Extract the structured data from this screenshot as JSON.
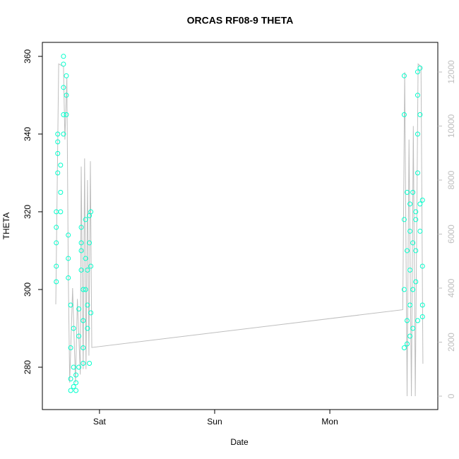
{
  "chart_data": {
    "type": "scatter",
    "title": "ORCAS RF08-9 THETA",
    "x_label": "Date",
    "y_label": "THETA",
    "xlim": [
      -11.9,
      70.5
    ],
    "xticks": [
      {
        "value": 0,
        "label": "Sat"
      },
      {
        "value": 24,
        "label": "Sun"
      },
      {
        "value": 48,
        "label": "Mon"
      }
    ],
    "ylim": [
      269.1,
      363.6
    ],
    "yticks": [
      280,
      300,
      320,
      340,
      360
    ],
    "y2lim": [
      -497,
      13098
    ],
    "y2ticks": [
      0,
      2000,
      4000,
      6000,
      8000,
      10000,
      12000
    ],
    "series": [
      {
        "color": "#00FFCC",
        "x": [
          -9.0,
          -9.0,
          -9.0,
          -9.0,
          -9.0,
          -8.7,
          -8.7,
          -8.7,
          -8.7,
          -8.1,
          -8.1,
          -8.1,
          -7.5,
          -7.5,
          -7.5,
          -7.5,
          -7.5,
          -6.9,
          -6.9,
          -6.9,
          -6.5,
          -6.5,
          -6.5,
          -6.0,
          -6.0,
          -6.0,
          -6.0,
          -5.4,
          -5.4,
          -5.4,
          -4.9,
          -4.9,
          -4.9,
          -4.3,
          -4.3,
          -4.3,
          -3.8,
          -3.8,
          -3.8,
          -3.8,
          -3.4,
          -3.4,
          -3.4,
          -3.4,
          -2.9,
          -2.9,
          -2.9,
          -2.5,
          -2.5,
          -2.5,
          -2.1,
          -2.1,
          -2.1,
          -1.8,
          -1.8,
          -1.8,
          63.5,
          63.5,
          63.5,
          63.5,
          63.5,
          64.1,
          64.1,
          64.1,
          64.1,
          64.7,
          64.7,
          64.7,
          64.7,
          64.7,
          65.3,
          65.3,
          65.3,
          65.3,
          65.9,
          65.9,
          65.9,
          65.9,
          66.3,
          66.3,
          66.3,
          66.3,
          66.3,
          66.8,
          66.8,
          66.8,
          66.8,
          67.3,
          67.3,
          67.3,
          67.3
        ],
        "values": [
          302,
          306,
          312,
          316,
          320,
          330,
          335,
          338,
          340,
          332,
          320,
          325,
          340,
          345,
          352,
          358,
          360,
          355,
          350,
          345,
          314,
          308,
          303,
          296,
          285,
          277,
          274,
          290,
          280,
          275,
          274,
          276,
          278,
          280,
          288,
          295,
          305,
          312,
          316,
          310,
          300,
          292,
          285,
          281,
          318,
          308,
          300,
          290,
          296,
          305,
          319,
          312,
          281,
          320,
          306,
          294,
          355,
          345,
          318,
          300,
          285,
          325,
          310,
          292,
          286,
          322,
          315,
          305,
          296,
          288,
          325,
          312,
          300,
          290,
          320,
          318,
          310,
          302,
          356,
          350,
          340,
          330,
          292,
          357,
          345,
          322,
          315,
          323,
          306,
          296,
          293
        ]
      },
      {
        "color": "#BEBEBE",
        "axis": "y2",
        "x": [
          -9.1,
          -8.5,
          -7.5,
          -7.2,
          -6.8,
          -6.5,
          -6.2,
          -5.6,
          -5.0,
          -4.6,
          -4.0,
          -3.8,
          -3.4,
          -3.1,
          -2.8,
          -2.5,
          -2.2,
          -1.9,
          -1.6,
          63.2,
          63.6,
          64.1,
          64.5,
          65.0,
          65.4,
          65.8,
          66.4,
          67.0,
          67.4
        ],
        "values": [
          3400,
          12300,
          12200,
          9500,
          11800,
          4500,
          500,
          4000,
          500,
          3600,
          800,
          8500,
          1000,
          8800,
          1000,
          8000,
          1500,
          8700,
          1800,
          3200,
          12000,
          0,
          9500,
          0,
          10000,
          0,
          12300,
          12200,
          1200
        ]
      }
    ]
  }
}
